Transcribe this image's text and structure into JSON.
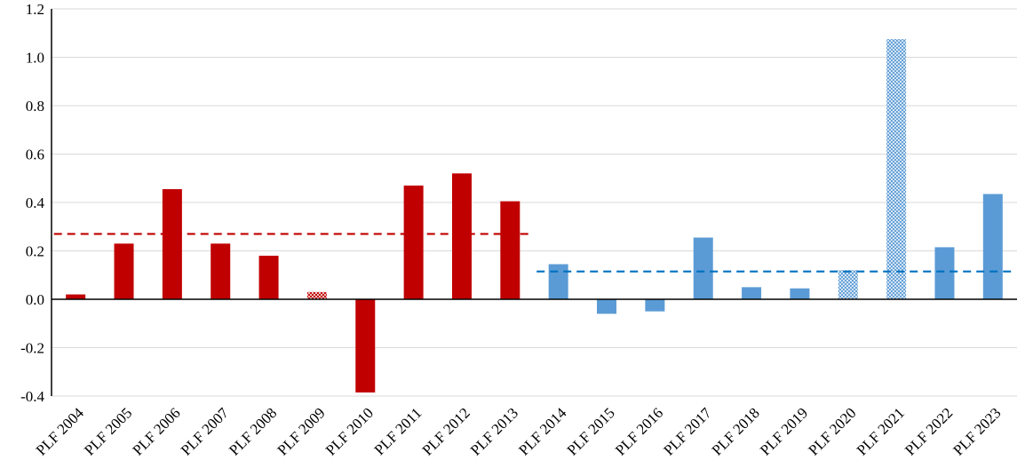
{
  "chart_data": {
    "type": "bar",
    "title": "",
    "xlabel": "",
    "ylabel": "",
    "ylim": [
      -0.4,
      1.2
    ],
    "y_ticks": [
      "-0.4",
      "-0.2",
      "0.0",
      "0.2",
      "0.4",
      "0.6",
      "0.8",
      "1.0",
      "1.2"
    ],
    "grid": true,
    "legend": "none",
    "categories": [
      "PLF 2004",
      "PLF 2005",
      "PLF 2006",
      "PLF 2007",
      "PLF 2008",
      "PLF 2009",
      "PLF 2010",
      "PLF 2011",
      "PLF 2012",
      "PLF 2013",
      "PLF 2014",
      "PLF 2015",
      "PLF 2016",
      "PLF 2017",
      "PLF 2018",
      "PLF 2019",
      "PLF 2020",
      "PLF 2021",
      "PLF 2022",
      "PLF 2023"
    ],
    "values": [
      0.02,
      0.23,
      0.455,
      0.23,
      0.18,
      0.03,
      -0.385,
      0.47,
      0.52,
      0.405,
      0.145,
      -0.06,
      -0.05,
      0.255,
      0.05,
      0.045,
      0.12,
      1.075,
      0.215,
      0.435
    ],
    "bar_colors": [
      "#c00000",
      "#c00000",
      "#c00000",
      "#c00000",
      "#c00000",
      "#c00000",
      "#c00000",
      "#c00000",
      "#c00000",
      "#c00000",
      "#5b9bd5",
      "#5b9bd5",
      "#5b9bd5",
      "#5b9bd5",
      "#5b9bd5",
      "#5b9bd5",
      "#5b9bd5",
      "#5b9bd5",
      "#5b9bd5",
      "#5b9bd5"
    ],
    "hatched": [
      false,
      false,
      false,
      false,
      false,
      true,
      false,
      false,
      false,
      false,
      false,
      false,
      false,
      false,
      false,
      false,
      true,
      true,
      false,
      false
    ],
    "reference_lines": [
      {
        "value": 0.27,
        "from": "PLF 2004",
        "to": "PLF 2013",
        "color": "#c00000",
        "style": "dashed"
      },
      {
        "value": 0.115,
        "from": "PLF 2014",
        "to": "PLF 2023",
        "color": "#0070c0",
        "style": "dashed"
      }
    ]
  }
}
